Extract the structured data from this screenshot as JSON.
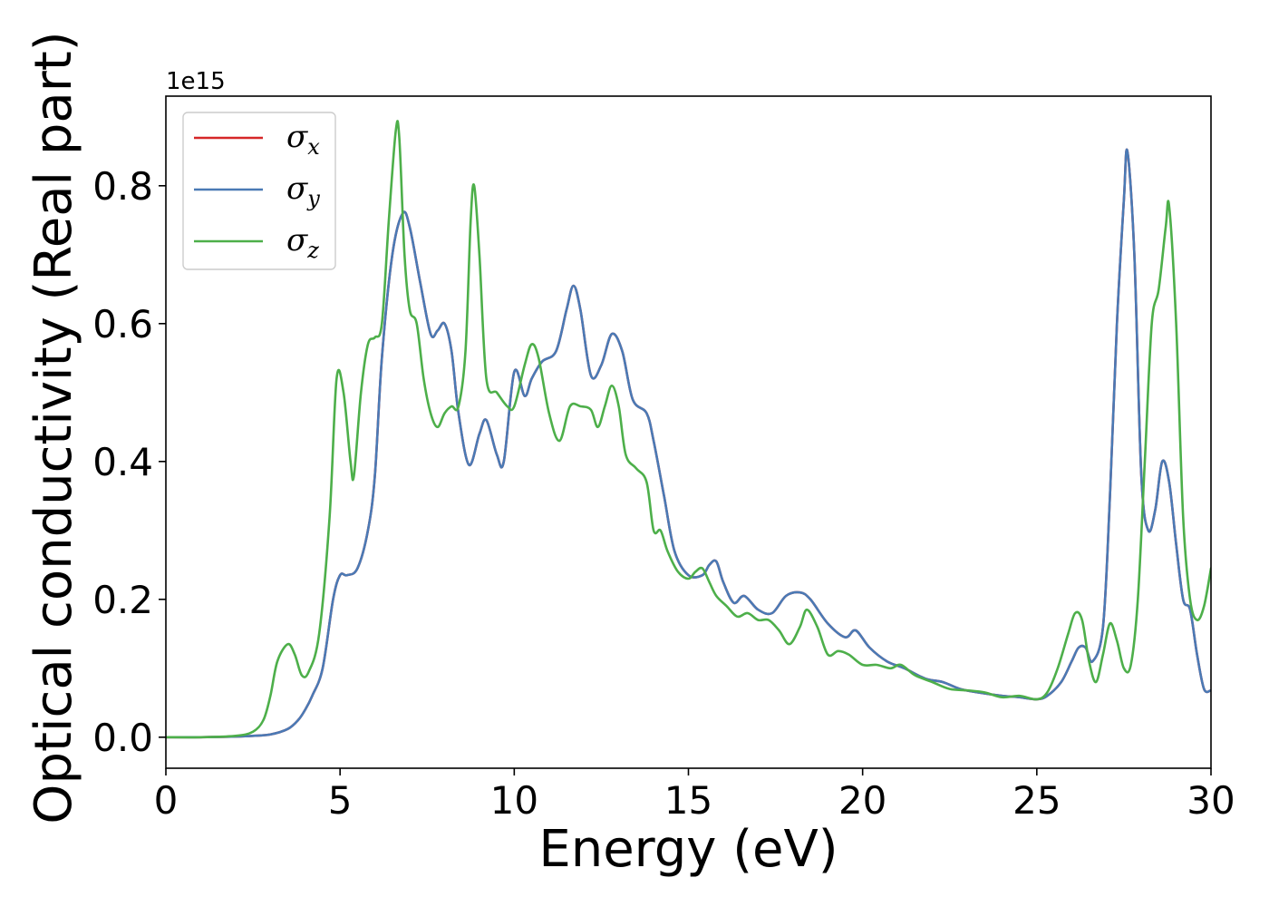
{
  "chart_data": {
    "type": "line",
    "xlabel": "Energy (eV)",
    "ylabel": "Optical conductivity (Real part)",
    "y_offset_text": "1e15",
    "xlim": [
      0,
      30
    ],
    "ylim": [
      -0.045,
      0.93
    ],
    "y_multiplier": 1000000000000000.0,
    "x_ticks": [
      "0",
      "5",
      "10",
      "15",
      "20",
      "25",
      "30"
    ],
    "y_ticks": [
      "0.0",
      "0.2",
      "0.4",
      "0.6",
      "0.8"
    ],
    "grid": false,
    "legend_position": "upper-left",
    "series": [
      {
        "name": "σx",
        "legend_base": "σ",
        "legend_sub": "x",
        "color": "#d62728",
        "x": [
          0,
          1,
          2,
          2.5,
          3,
          3.5,
          3.8,
          4,
          4.2,
          4.5,
          4.8,
          5,
          5.2,
          5.5,
          5.8,
          6,
          6.2,
          6.5,
          6.8,
          7,
          7.3,
          7.6,
          7.8,
          8,
          8.2,
          8.4,
          8.7,
          9,
          9.2,
          9.5,
          9.7,
          10,
          10.3,
          10.5,
          10.8,
          11.2,
          11.5,
          11.7,
          11.9,
          12.2,
          12.5,
          12.8,
          13.1,
          13.4,
          13.8,
          14,
          14.3,
          14.6,
          15,
          15.4,
          15.6,
          15.8,
          16,
          16.3,
          16.6,
          17,
          17.4,
          17.8,
          18.2,
          18.5,
          19,
          19.5,
          19.8,
          20.2,
          20.7,
          21.2,
          21.8,
          22.3,
          22.8,
          23.3,
          24,
          24.5,
          25,
          25.3,
          25.7,
          26,
          26.2,
          26.4,
          26.6,
          26.9,
          27.1,
          27.3,
          27.5,
          27.6,
          27.8,
          28,
          28.2,
          28.4,
          28.6,
          28.8,
          29,
          29.2,
          29.4,
          29.6,
          29.8,
          30
        ],
        "y": [
          0,
          0,
          0.001,
          0.002,
          0.004,
          0.012,
          0.025,
          0.04,
          0.06,
          0.1,
          0.2,
          0.235,
          0.235,
          0.245,
          0.3,
          0.38,
          0.55,
          0.7,
          0.76,
          0.74,
          0.66,
          0.585,
          0.59,
          0.6,
          0.56,
          0.47,
          0.395,
          0.44,
          0.46,
          0.41,
          0.4,
          0.53,
          0.495,
          0.52,
          0.545,
          0.56,
          0.62,
          0.655,
          0.62,
          0.525,
          0.54,
          0.585,
          0.56,
          0.49,
          0.47,
          0.43,
          0.35,
          0.27,
          0.235,
          0.235,
          0.25,
          0.255,
          0.225,
          0.195,
          0.205,
          0.185,
          0.18,
          0.205,
          0.21,
          0.2,
          0.165,
          0.145,
          0.155,
          0.13,
          0.11,
          0.1,
          0.085,
          0.08,
          0.07,
          0.065,
          0.06,
          0.058,
          0.055,
          0.06,
          0.08,
          0.11,
          0.13,
          0.13,
          0.11,
          0.16,
          0.35,
          0.6,
          0.78,
          0.85,
          0.7,
          0.38,
          0.3,
          0.33,
          0.4,
          0.37,
          0.28,
          0.2,
          0.185,
          0.12,
          0.07,
          0.068
        ]
      },
      {
        "name": "σy",
        "legend_base": "σ",
        "legend_sub": "y",
        "color": "#4a7ab5",
        "x": [
          0,
          1,
          2,
          2.5,
          3,
          3.5,
          3.8,
          4,
          4.2,
          4.5,
          4.8,
          5,
          5.2,
          5.5,
          5.8,
          6,
          6.2,
          6.5,
          6.8,
          7,
          7.3,
          7.6,
          7.8,
          8,
          8.2,
          8.4,
          8.7,
          9,
          9.2,
          9.5,
          9.7,
          10,
          10.3,
          10.5,
          10.8,
          11.2,
          11.5,
          11.7,
          11.9,
          12.2,
          12.5,
          12.8,
          13.1,
          13.4,
          13.8,
          14,
          14.3,
          14.6,
          15,
          15.4,
          15.6,
          15.8,
          16,
          16.3,
          16.6,
          17,
          17.4,
          17.8,
          18.2,
          18.5,
          19,
          19.5,
          19.8,
          20.2,
          20.7,
          21.2,
          21.8,
          22.3,
          22.8,
          23.3,
          24,
          24.5,
          25,
          25.3,
          25.7,
          26,
          26.2,
          26.4,
          26.6,
          26.9,
          27.1,
          27.3,
          27.5,
          27.6,
          27.8,
          28,
          28.2,
          28.4,
          28.6,
          28.8,
          29,
          29.2,
          29.4,
          29.6,
          29.8,
          30
        ],
        "y": [
          0,
          0,
          0.001,
          0.002,
          0.004,
          0.012,
          0.025,
          0.04,
          0.06,
          0.1,
          0.2,
          0.235,
          0.235,
          0.245,
          0.3,
          0.38,
          0.55,
          0.7,
          0.76,
          0.74,
          0.66,
          0.585,
          0.59,
          0.6,
          0.56,
          0.47,
          0.395,
          0.44,
          0.46,
          0.41,
          0.4,
          0.53,
          0.495,
          0.52,
          0.545,
          0.56,
          0.62,
          0.655,
          0.62,
          0.525,
          0.54,
          0.585,
          0.56,
          0.49,
          0.47,
          0.43,
          0.35,
          0.27,
          0.235,
          0.235,
          0.25,
          0.255,
          0.225,
          0.195,
          0.205,
          0.185,
          0.18,
          0.205,
          0.21,
          0.2,
          0.165,
          0.145,
          0.155,
          0.13,
          0.11,
          0.1,
          0.085,
          0.08,
          0.07,
          0.065,
          0.06,
          0.058,
          0.055,
          0.06,
          0.08,
          0.11,
          0.13,
          0.13,
          0.11,
          0.16,
          0.35,
          0.6,
          0.78,
          0.85,
          0.7,
          0.38,
          0.3,
          0.33,
          0.4,
          0.37,
          0.28,
          0.2,
          0.185,
          0.12,
          0.07,
          0.068
        ]
      },
      {
        "name": "σz",
        "legend_base": "σ",
        "legend_sub": "z",
        "color": "#4daf4a",
        "x": [
          0,
          1,
          2,
          2.5,
          2.8,
          3,
          3.2,
          3.5,
          3.7,
          3.9,
          4.1,
          4.4,
          4.7,
          4.9,
          5.1,
          5.3,
          5.4,
          5.6,
          5.8,
          6,
          6.2,
          6.4,
          6.6,
          6.7,
          6.85,
          7,
          7.2,
          7.4,
          7.6,
          7.8,
          8,
          8.2,
          8.4,
          8.6,
          8.75,
          8.85,
          9,
          9.2,
          9.5,
          9.8,
          10,
          10.3,
          10.5,
          10.7,
          11,
          11.3,
          11.6,
          11.9,
          12.2,
          12.4,
          12.6,
          12.8,
          13,
          13.2,
          13.5,
          13.8,
          14,
          14.2,
          14.4,
          14.7,
          15,
          15.2,
          15.4,
          15.6,
          15.8,
          16.1,
          16.4,
          16.7,
          17,
          17.3,
          17.6,
          17.9,
          18.2,
          18.4,
          18.7,
          19,
          19.3,
          19.6,
          20,
          20.4,
          20.8,
          21.1,
          21.5,
          22,
          22.5,
          23,
          23.5,
          24,
          24.5,
          25,
          25.3,
          25.6,
          25.9,
          26.1,
          26.3,
          26.5,
          26.7,
          26.9,
          27.1,
          27.3,
          27.5,
          27.7,
          27.9,
          28.1,
          28.3,
          28.5,
          28.7,
          28.8,
          29,
          29.2,
          29.4,
          29.6,
          29.8,
          30
        ],
        "y": [
          0,
          0,
          0.002,
          0.008,
          0.025,
          0.06,
          0.11,
          0.135,
          0.12,
          0.09,
          0.095,
          0.15,
          0.32,
          0.52,
          0.5,
          0.4,
          0.38,
          0.5,
          0.57,
          0.58,
          0.6,
          0.75,
          0.88,
          0.87,
          0.7,
          0.62,
          0.6,
          0.52,
          0.47,
          0.45,
          0.47,
          0.48,
          0.48,
          0.56,
          0.75,
          0.8,
          0.7,
          0.52,
          0.5,
          0.48,
          0.48,
          0.54,
          0.57,
          0.55,
          0.47,
          0.43,
          0.48,
          0.48,
          0.475,
          0.45,
          0.48,
          0.51,
          0.48,
          0.41,
          0.39,
          0.37,
          0.3,
          0.3,
          0.27,
          0.24,
          0.23,
          0.24,
          0.245,
          0.225,
          0.205,
          0.19,
          0.175,
          0.18,
          0.17,
          0.17,
          0.155,
          0.135,
          0.16,
          0.185,
          0.16,
          0.12,
          0.125,
          0.12,
          0.105,
          0.105,
          0.1,
          0.105,
          0.09,
          0.08,
          0.07,
          0.068,
          0.065,
          0.058,
          0.06,
          0.055,
          0.065,
          0.1,
          0.15,
          0.18,
          0.17,
          0.11,
          0.08,
          0.12,
          0.165,
          0.14,
          0.1,
          0.105,
          0.2,
          0.4,
          0.6,
          0.65,
          0.74,
          0.77,
          0.6,
          0.32,
          0.2,
          0.17,
          0.19,
          0.245
        ]
      }
    ]
  }
}
